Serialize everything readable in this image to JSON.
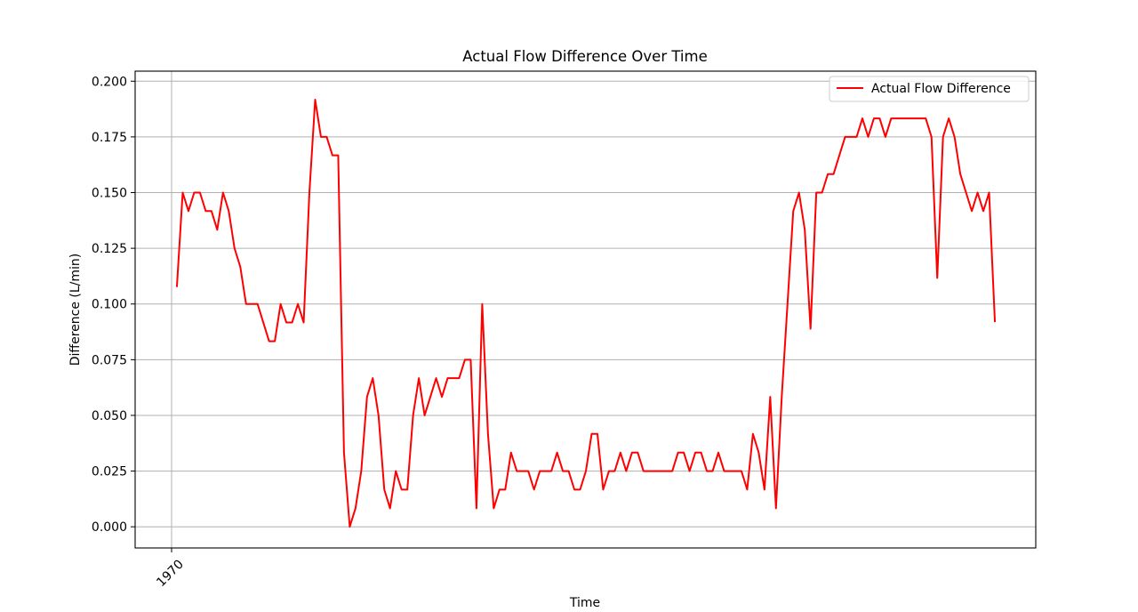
{
  "chart_data": {
    "type": "line",
    "title": "Actual Flow Difference Over Time",
    "xlabel": "Time",
    "ylabel": "Difference (L/min)",
    "ylim": [
      -0.0095,
      0.2045
    ],
    "y_ticks": [
      0.0,
      0.025,
      0.05,
      0.075,
      0.1,
      0.125,
      0.15,
      0.175,
      0.2
    ],
    "y_tick_labels": [
      "0.000",
      "0.025",
      "0.050",
      "0.075",
      "0.100",
      "0.125",
      "0.150",
      "0.175",
      "0.200"
    ],
    "x_tick_labels": [
      "1970"
    ],
    "grid": true,
    "legend_position": "top-right",
    "series": [
      {
        "name": "Actual Flow Difference",
        "color": "#ff0000",
        "values": [
          0.108,
          0.15,
          0.1417,
          0.15,
          0.15,
          0.1417,
          0.1417,
          0.1333,
          0.15,
          0.1417,
          0.125,
          0.1167,
          0.1,
          0.1,
          0.1,
          0.0917,
          0.0833,
          0.0833,
          0.1,
          0.0917,
          0.0917,
          0.1,
          0.0917,
          0.15,
          0.1917,
          0.175,
          0.175,
          0.1667,
          0.1667,
          0.0333,
          0.0,
          0.0083,
          0.025,
          0.0583,
          0.0667,
          0.05,
          0.0167,
          0.0083,
          0.025,
          0.0167,
          0.0167,
          0.05,
          0.0667,
          0.05,
          0.0583,
          0.0667,
          0.0583,
          0.0667,
          0.0667,
          0.0667,
          0.075,
          0.075,
          0.0083,
          0.1,
          0.0417,
          0.0083,
          0.0167,
          0.0167,
          0.0333,
          0.025,
          0.025,
          0.025,
          0.0167,
          0.025,
          0.025,
          0.025,
          0.0333,
          0.025,
          0.025,
          0.0167,
          0.0167,
          0.025,
          0.0417,
          0.0417,
          0.0167,
          0.025,
          0.025,
          0.0333,
          0.025,
          0.0333,
          0.0333,
          0.025,
          0.025,
          0.025,
          0.025,
          0.025,
          0.025,
          0.0333,
          0.0333,
          0.025,
          0.0333,
          0.0333,
          0.025,
          0.025,
          0.0333,
          0.025,
          0.025,
          0.025,
          0.025,
          0.0167,
          0.0417,
          0.0333,
          0.0167,
          0.0583,
          0.0083,
          0.0583,
          0.1,
          0.1417,
          0.15,
          0.1333,
          0.0889,
          0.15,
          0.15,
          0.1583,
          0.1583,
          0.1667,
          0.175,
          0.175,
          0.175,
          0.1833,
          0.175,
          0.1833,
          0.1833,
          0.175,
          0.1833,
          0.1833,
          0.1833,
          0.1833,
          0.1833,
          0.1833,
          0.1833,
          0.175,
          0.1117,
          0.175,
          0.1833,
          0.175,
          0.1583,
          0.15,
          0.1417,
          0.15,
          0.1417,
          0.15,
          0.0923
        ]
      }
    ]
  }
}
